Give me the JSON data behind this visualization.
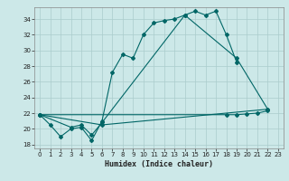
{
  "xlabel": "Humidex (Indice chaleur)",
  "bg_color": "#cce8e8",
  "grid_color": "#aacccc",
  "line_color": "#006666",
  "xlim": [
    -0.5,
    23.5
  ],
  "ylim": [
    17.5,
    35.5
  ],
  "yticks": [
    18,
    20,
    22,
    24,
    26,
    28,
    30,
    32,
    34
  ],
  "xticks": [
    0,
    1,
    2,
    3,
    4,
    5,
    6,
    7,
    8,
    9,
    10,
    11,
    12,
    13,
    14,
    15,
    16,
    17,
    18,
    19,
    20,
    21,
    22,
    23
  ],
  "series_points": [
    [
      [
        0,
        21.8
      ],
      [
        1,
        20.5
      ],
      [
        2,
        19.0
      ],
      [
        3,
        20.0
      ],
      [
        4,
        20.2
      ],
      [
        5,
        18.5
      ],
      [
        6,
        21.0
      ],
      [
        7,
        27.2
      ],
      [
        8,
        29.5
      ],
      [
        9,
        29.0
      ],
      [
        10,
        32.0
      ],
      [
        11,
        33.5
      ],
      [
        12,
        33.8
      ],
      [
        13,
        34.0
      ],
      [
        14,
        34.5
      ],
      [
        15,
        35.0
      ],
      [
        16,
        34.5
      ],
      [
        17,
        35.0
      ],
      [
        18,
        32.0
      ],
      [
        19,
        28.5
      ]
    ],
    [
      [
        0,
        21.8
      ],
      [
        3,
        20.2
      ],
      [
        4,
        20.5
      ],
      [
        5,
        19.2
      ],
      [
        6,
        20.8
      ],
      [
        14,
        34.5
      ],
      [
        19,
        29.0
      ],
      [
        22,
        22.5
      ]
    ],
    [
      [
        0,
        21.8
      ],
      [
        6,
        20.5
      ],
      [
        22,
        22.5
      ]
    ],
    [
      [
        0,
        21.8
      ],
      [
        18,
        21.8
      ],
      [
        19,
        21.8
      ],
      [
        20,
        21.9
      ],
      [
        21,
        22.0
      ],
      [
        22,
        22.3
      ]
    ]
  ]
}
